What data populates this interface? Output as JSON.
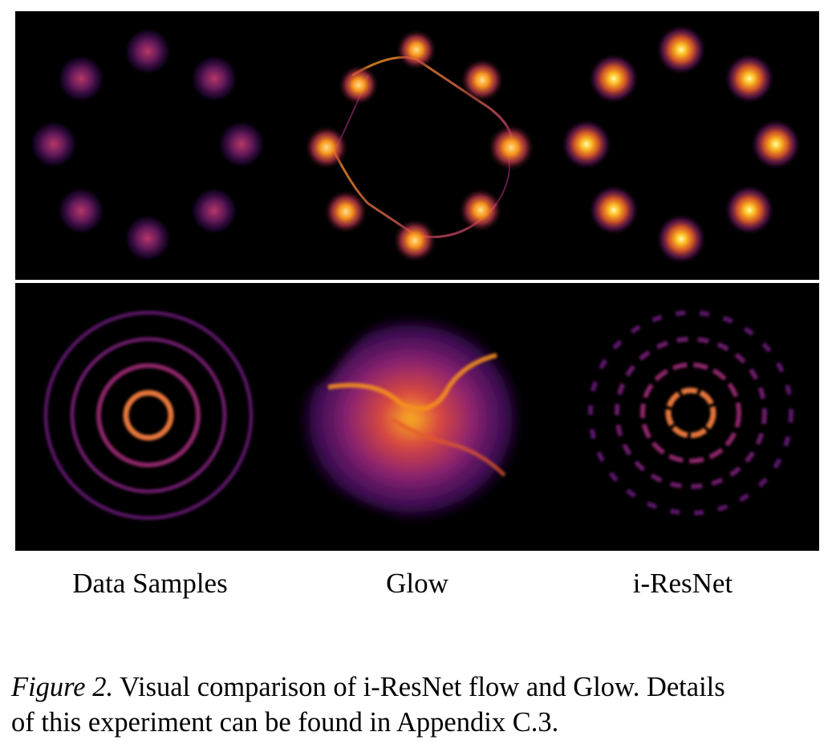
{
  "columns": {
    "data_samples": "Data Samples",
    "glow": "Glow",
    "iresnet": "i-ResNet"
  },
  "caption": {
    "figure_label": "Figure 2.",
    "line1_text": "Visual comparison of i-ResNet flow and Glow. Details",
    "line2_text": "of this experiment can be found in Appendix C.3."
  },
  "colors": {
    "background": "#000000",
    "colormap": [
      "#000004",
      "#420a68",
      "#932667",
      "#dd513a",
      "#fca50a",
      "#fcffa4"
    ]
  }
}
